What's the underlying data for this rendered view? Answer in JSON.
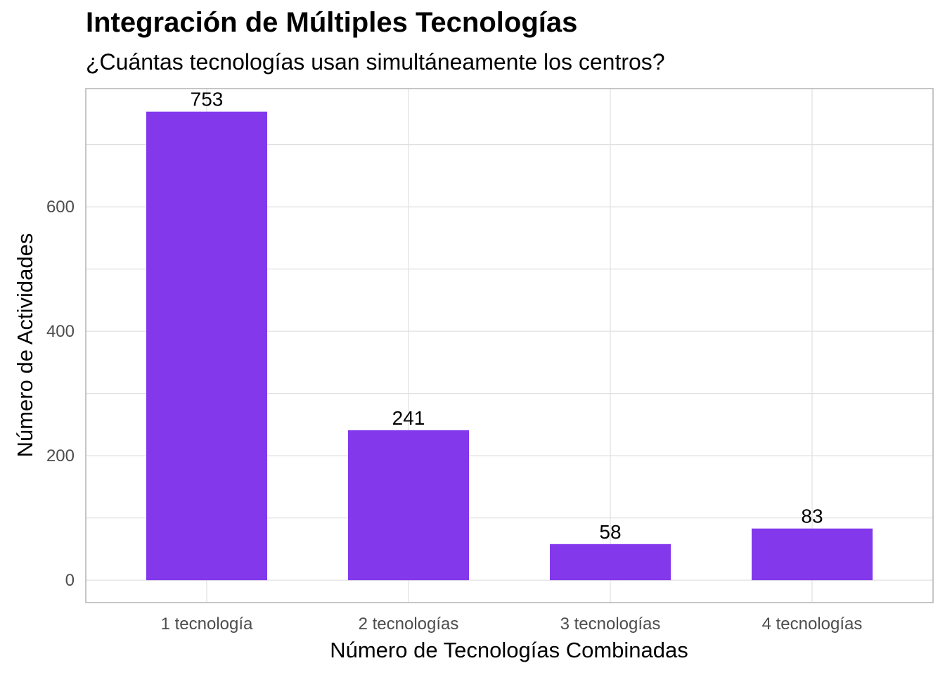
{
  "chart_data": {
    "type": "bar",
    "title": "Integración de Múltiples Tecnologías",
    "subtitle": "¿Cuántas tecnologías usan simultáneamente los centros?",
    "xlabel": "Número de Tecnologías Combinadas",
    "ylabel": "Número de Actividades",
    "categories": [
      "1 tecnología",
      "2 tecnologías",
      "3 tecnologías",
      "4 tecnologías"
    ],
    "values": [
      753,
      241,
      58,
      83
    ],
    "data_labels": [
      "753",
      "241",
      "58",
      "83"
    ],
    "ylim": [
      -36,
      790
    ],
    "yticks": [
      0,
      200,
      400,
      600
    ],
    "ytick_labels": [
      "0",
      "200",
      "400",
      "600"
    ],
    "grid": true,
    "legend": "none",
    "bar_color": "#8338EC"
  }
}
